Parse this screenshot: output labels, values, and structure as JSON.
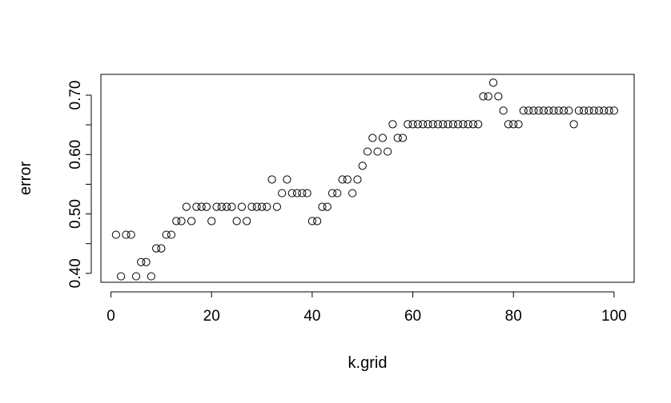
{
  "chart_data": {
    "type": "scatter",
    "title": "",
    "xlabel": "k.grid",
    "ylabel": "error",
    "xlim": [
      -2,
      104
    ],
    "ylim": [
      0.385,
      0.735
    ],
    "x_ticks": [
      {
        "value": 0,
        "label": "0"
      },
      {
        "value": 20,
        "label": "20"
      },
      {
        "value": 40,
        "label": "40"
      },
      {
        "value": 60,
        "label": "60"
      },
      {
        "value": 80,
        "label": "80"
      },
      {
        "value": 100,
        "label": "100"
      }
    ],
    "y_ticks": [
      {
        "value": 0.4,
        "label": "0.40"
      },
      {
        "value": 0.45,
        "label": ""
      },
      {
        "value": 0.5,
        "label": "0.50"
      },
      {
        "value": 0.55,
        "label": ""
      },
      {
        "value": 0.6,
        "label": "0.60"
      },
      {
        "value": 0.65,
        "label": ""
      },
      {
        "value": 0.7,
        "label": "0.70"
      }
    ],
    "grid": false,
    "legend": "none",
    "point_color": "#000000",
    "x": [
      1,
      2,
      3,
      4,
      5,
      6,
      7,
      8,
      9,
      10,
      11,
      12,
      13,
      14,
      15,
      16,
      17,
      18,
      19,
      20,
      21,
      22,
      23,
      24,
      25,
      26,
      27,
      28,
      29,
      30,
      31,
      32,
      33,
      34,
      35,
      36,
      37,
      38,
      39,
      40,
      41,
      42,
      43,
      44,
      45,
      46,
      47,
      48,
      49,
      50,
      51,
      52,
      53,
      54,
      55,
      56,
      57,
      58,
      59,
      60,
      61,
      62,
      63,
      64,
      65,
      66,
      67,
      68,
      69,
      70,
      71,
      72,
      73,
      74,
      75,
      76,
      77,
      78,
      79,
      80,
      81,
      82,
      83,
      84,
      85,
      86,
      87,
      88,
      89,
      90,
      91,
      92,
      93,
      94,
      95,
      96,
      97,
      98,
      99,
      100
    ],
    "y": [
      0.465,
      0.395,
      0.465,
      0.465,
      0.395,
      0.419,
      0.419,
      0.395,
      0.442,
      0.442,
      0.465,
      0.465,
      0.488,
      0.488,
      0.512,
      0.488,
      0.512,
      0.512,
      0.512,
      0.488,
      0.512,
      0.512,
      0.512,
      0.512,
      0.488,
      0.512,
      0.488,
      0.512,
      0.512,
      0.512,
      0.512,
      0.558,
      0.512,
      0.535,
      0.558,
      0.535,
      0.535,
      0.535,
      0.535,
      0.488,
      0.488,
      0.512,
      0.512,
      0.535,
      0.535,
      0.558,
      0.558,
      0.535,
      0.558,
      0.581,
      0.605,
      0.628,
      0.605,
      0.628,
      0.605,
      0.651,
      0.628,
      0.628,
      0.651,
      0.651,
      0.651,
      0.651,
      0.651,
      0.651,
      0.651,
      0.651,
      0.651,
      0.651,
      0.651,
      0.651,
      0.651,
      0.651,
      0.651,
      0.698,
      0.698,
      0.721,
      0.698,
      0.674,
      0.651,
      0.651,
      0.651,
      0.674,
      0.674,
      0.674,
      0.674,
      0.674,
      0.674,
      0.674,
      0.674,
      0.674,
      0.674,
      0.651,
      0.674,
      0.674,
      0.674,
      0.674,
      0.674,
      0.674,
      0.674,
      0.674
    ]
  }
}
